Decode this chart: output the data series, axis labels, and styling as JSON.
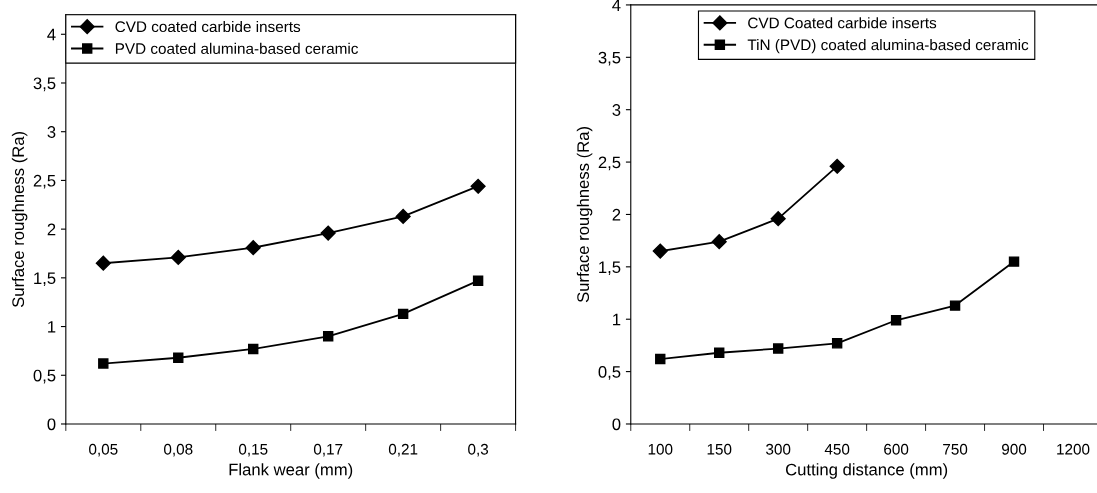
{
  "chart_data": [
    {
      "type": "line",
      "xlabel": "Flank wear (mm)",
      "ylabel": "Surface roughness (Ra)",
      "categories": [
        "0,05",
        "0,08",
        "0,15",
        "0,17",
        "0,21",
        "0,3"
      ],
      "series": [
        {
          "name": "CVD coated carbide inserts",
          "color": "#000000",
          "marker": "diamond",
          "values": [
            1.65,
            1.71,
            1.81,
            1.96,
            2.13,
            2.44
          ]
        },
        {
          "name": "PVD coated alumina-based ceramic",
          "color": "#000000",
          "marker": "square",
          "values": [
            0.62,
            0.68,
            0.77,
            0.9,
            1.13,
            1.47
          ]
        }
      ],
      "ylim": [
        0,
        4.2
      ],
      "yticks": [
        0,
        {
          "value": 0.5,
          "label": "0,5"
        },
        1,
        {
          "value": 1.5,
          "label": "1,5"
        },
        2,
        {
          "value": 2.5,
          "label": "2,5"
        },
        3,
        {
          "value": 3.5,
          "label": "3,5"
        },
        4
      ],
      "grid": false,
      "legend": "top",
      "line_style": "solid"
    },
    {
      "type": "line",
      "xlabel": "Cutting distance (mm)",
      "ylabel": "Surface roughness (Ra)",
      "categories": [
        "100",
        "150",
        "300",
        "450",
        "600",
        "750",
        "900",
        "1200"
      ],
      "series": [
        {
          "name": "CVD Coated carbide inserts",
          "color": "#000000",
          "marker": "diamond",
          "values": [
            1.65,
            1.74,
            1.96,
            2.46,
            null,
            null,
            null,
            null
          ]
        },
        {
          "name": "TiN (PVD) coated alumina-based ceramic",
          "color": "#000000",
          "marker": "square",
          "values": [
            0.62,
            0.68,
            0.72,
            0.77,
            0.99,
            1.13,
            1.55,
            null
          ]
        }
      ],
      "ylim": [
        0,
        4
      ],
      "yticks": [
        0,
        {
          "value": 0.5,
          "label": "0,5"
        },
        1,
        {
          "value": 1.5,
          "label": "1,5"
        },
        2,
        {
          "value": 2.5,
          "label": "2,5"
        },
        3,
        {
          "value": 3.5,
          "label": "3,5"
        },
        4
      ],
      "grid": false,
      "legend": "top",
      "line_style": "solid"
    }
  ]
}
